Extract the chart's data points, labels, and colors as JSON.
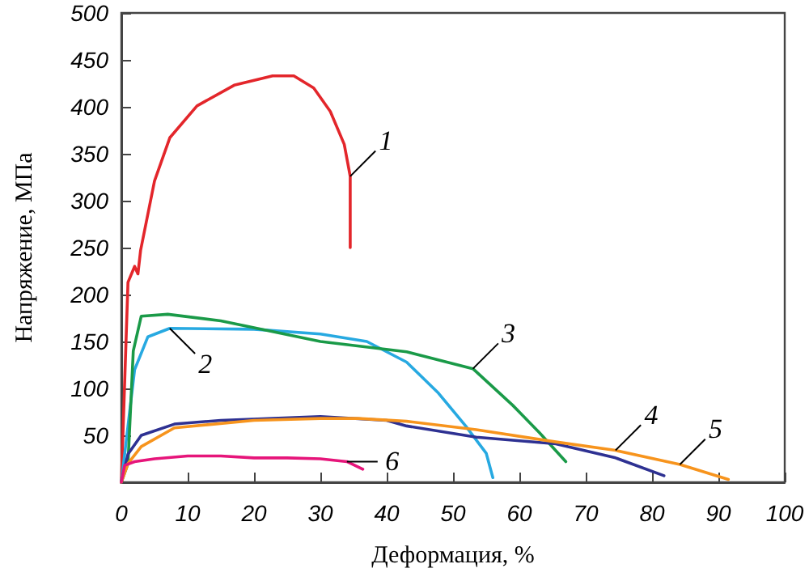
{
  "chart_data": {
    "type": "line",
    "xlabel": "Деформация, %",
    "ylabel": "Напряжение, МПа",
    "xlim": [
      0,
      100
    ],
    "xticks": [
      0,
      10,
      20,
      30,
      40,
      50,
      60,
      70,
      80,
      90,
      100
    ],
    "ylim": [
      0,
      500
    ],
    "yticks": [
      50,
      100,
      150,
      200,
      250,
      300,
      350,
      400,
      450,
      500
    ],
    "grid": false,
    "marker": "none",
    "line_style": "solid",
    "series": [
      {
        "color": "#e3262b",
        "x": [
          0,
          1,
          2,
          2.5,
          2.9,
          5,
          7.3,
          11.4,
          17,
          22.8,
          26,
          29,
          31.5,
          33.6,
          34.5,
          34.5
        ],
        "values": [
          0,
          213,
          230,
          222,
          247,
          321,
          367,
          401,
          423,
          433,
          433,
          420,
          395,
          360,
          326,
          250
        ]
      },
      {
        "color": "#27a9e1",
        "x": [
          0,
          1,
          2,
          4,
          7.3,
          20,
          30,
          37,
          43,
          47.8,
          51.9,
          55,
          56
        ],
        "values": [
          0,
          60,
          120,
          155,
          164,
          163,
          158,
          150,
          128,
          95,
          60,
          31,
          5
        ]
      },
      {
        "color": "#1a9a48",
        "x": [
          0,
          1,
          1.8,
          3,
          7,
          15,
          30,
          43,
          53,
          59,
          63,
          67
        ],
        "values": [
          0,
          20,
          140,
          177,
          179,
          172,
          150,
          139,
          121,
          82,
          53,
          22
        ]
      },
      {
        "color": "#2e3192",
        "x": [
          0,
          1,
          3,
          8,
          15,
          30,
          40,
          43,
          53.5,
          65.5,
          74.5,
          81.8
        ],
        "values": [
          0,
          30,
          50,
          62,
          66,
          70,
          66,
          60,
          48,
          41,
          26,
          7
        ]
      },
      {
        "color": "#f7941d",
        "x": [
          0,
          1,
          3,
          8,
          20,
          30,
          35.7,
          43,
          53.5,
          65.5,
          74.5,
          84.2,
          91.5
        ],
        "values": [
          0,
          20,
          38,
          58,
          66,
          68,
          68,
          65,
          56,
          43,
          34,
          19,
          3
        ]
      },
      {
        "color": "#e6157a",
        "x": [
          0,
          0.5,
          2,
          5,
          10,
          15,
          20,
          25,
          30,
          34,
          36.4
        ],
        "values": [
          0,
          18,
          22,
          25,
          28,
          28,
          26,
          26,
          25,
          22,
          14
        ]
      }
    ],
    "annotations": [
      {
        "text": "1",
        "x": 34.5,
        "y": 326
      },
      {
        "text": "2",
        "x": 7.3,
        "y": 164
      },
      {
        "text": "3",
        "x": 53,
        "y": 121
      },
      {
        "text": "4",
        "x": 74.5,
        "y": 34
      },
      {
        "text": "5",
        "x": 84.2,
        "y": 19
      },
      {
        "text": "6",
        "x": 34,
        "y": 22
      }
    ]
  }
}
